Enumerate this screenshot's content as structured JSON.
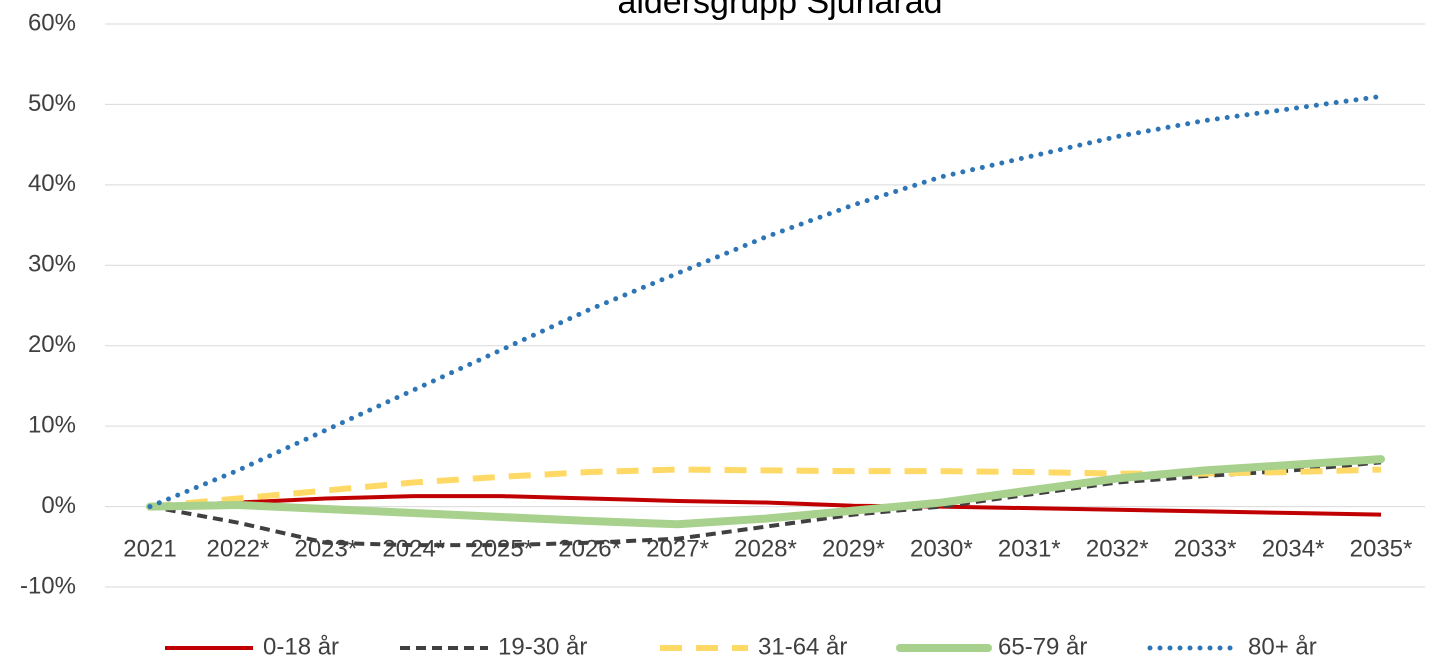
{
  "chart_data": {
    "type": "line",
    "title": "åldersgrupp Sjuhärad",
    "categories": [
      "2021",
      "2022*",
      "2023*",
      "2024*",
      "2025*",
      "2026*",
      "2027*",
      "2028*",
      "2029*",
      "2030*",
      "2031*",
      "2032*",
      "2033*",
      "2034*",
      "2035*"
    ],
    "series": [
      {
        "name": "0-18 år",
        "color": "#c00000",
        "values": [
          0,
          0.5,
          1,
          1.3,
          1.3,
          1,
          0.7,
          0.5,
          0.1,
          0,
          -0.2,
          -0.4,
          -0.6,
          -0.8,
          -1
        ]
      },
      {
        "name": "19-30 år",
        "color": "#404040",
        "values": [
          0,
          -2,
          -4.5,
          -4.8,
          -4.8,
          -4.5,
          -4,
          -2.5,
          -1,
          0,
          1.5,
          3,
          3.8,
          4.5,
          5.5
        ]
      },
      {
        "name": "31-64 år",
        "color": "#ffd966",
        "values": [
          0,
          1,
          2,
          3,
          3.7,
          4.3,
          4.6,
          4.5,
          4.4,
          4.4,
          4.3,
          4.1,
          4.1,
          4.3,
          4.6
        ]
      },
      {
        "name": "65-79 år",
        "color": "#a9d18e",
        "values": [
          0,
          0.2,
          -0.3,
          -0.8,
          -1.3,
          -1.8,
          -2.2,
          -1.5,
          -0.5,
          0.5,
          2,
          3.5,
          4.5,
          5.2,
          5.9
        ]
      },
      {
        "name": "80+ år",
        "color": "#2e75b6",
        "values": [
          0,
          4.5,
          9.5,
          14.5,
          19.5,
          24.5,
          29,
          33.5,
          37.5,
          41,
          43.5,
          46,
          48,
          49.5,
          51
        ]
      }
    ],
    "ylim": [
      -10,
      60
    ],
    "yticks": [
      {
        "value": -10,
        "label": "-10%"
      },
      {
        "value": 0,
        "label": "0%"
      },
      {
        "value": 10,
        "label": "10%"
      },
      {
        "value": 20,
        "label": "20%"
      },
      {
        "value": 30,
        "label": "30%"
      },
      {
        "value": 40,
        "label": "40%"
      },
      {
        "value": 50,
        "label": "50%"
      },
      {
        "value": 60,
        "label": "60%"
      }
    ],
    "grid": true,
    "legend": "bottom"
  }
}
